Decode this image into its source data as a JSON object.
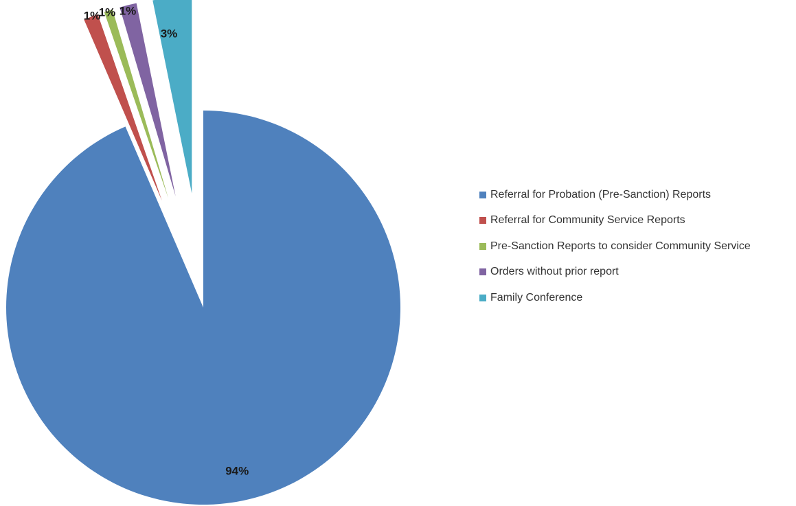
{
  "chart_data": {
    "type": "pie",
    "title": "",
    "legend_position": "right",
    "exploded": true,
    "slices": [
      {
        "name": "Referral for Probation (Pre-Sanction)  Reports",
        "value": 94,
        "label": "94%",
        "color": "#4F81BD"
      },
      {
        "name": "Referral for Community Service Reports",
        "value": 1.2,
        "label": "1%",
        "color": "#C0504D"
      },
      {
        "name": "Pre-Sanction Reports to consider Community Service",
        "value": 0.7,
        "label": "1%",
        "color": "#9BBB59"
      },
      {
        "name": "Orders without prior report",
        "value": 1.4,
        "label": "1%",
        "color": "#8064A2"
      },
      {
        "name": "Family Conference",
        "value": 3.2,
        "label": "3%",
        "color": "#4BACC6"
      }
    ]
  }
}
